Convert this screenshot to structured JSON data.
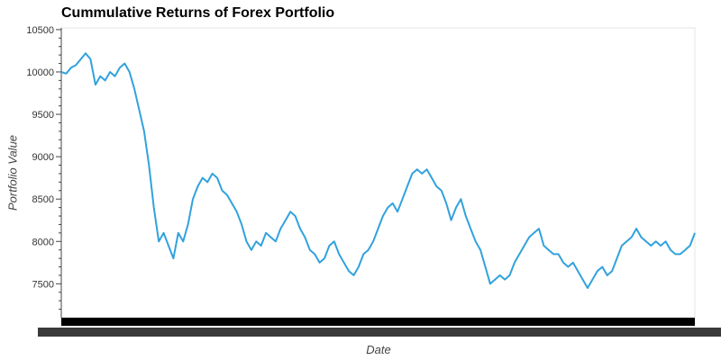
{
  "chart_data": {
    "type": "line",
    "title": "Cummulative Returns of Forex Portfolio",
    "xlabel": "Date",
    "ylabel": "Portfolio Value",
    "ylim": [
      7100,
      10520
    ],
    "y_ticks": [
      7500,
      8000,
      8500,
      9000,
      9500,
      10000,
      10500
    ],
    "y_tick_labels": [
      "7500",
      "8000",
      "8500",
      "9000",
      "9500",
      "10000",
      "10500"
    ],
    "grid": false,
    "legend": "none",
    "series_color": "#31a2dd",
    "series": [
      {
        "values": [
          10000,
          9980,
          10050,
          10080,
          10150,
          10220,
          10150,
          9850,
          9950,
          9900,
          10000,
          9950,
          10050,
          10100,
          10000,
          9800,
          9550,
          9300,
          8900,
          8400,
          8000,
          8100,
          7950,
          7800,
          8100,
          8000,
          8200,
          8500,
          8650,
          8750,
          8700,
          8800,
          8750,
          8600,
          8550,
          8450,
          8350,
          8200,
          8000,
          7900,
          8000,
          7950,
          8100,
          8050,
          8000,
          8150,
          8250,
          8350,
          8300,
          8150,
          8050,
          7900,
          7850,
          7750,
          7800,
          7950,
          8000,
          7850,
          7750,
          7650,
          7600,
          7700,
          7850,
          7900,
          8000,
          8150,
          8300,
          8400,
          8450,
          8350,
          8500,
          8650,
          8800,
          8850,
          8800,
          8850,
          8750,
          8650,
          8600,
          8450,
          8250,
          8400,
          8500,
          8300,
          8150,
          8000,
          7900,
          7700,
          7500,
          7550,
          7600,
          7550,
          7600,
          7750,
          7850,
          7950,
          8050,
          8100,
          8150,
          7950,
          7900,
          7850,
          7850,
          7750,
          7700,
          7750,
          7650,
          7550,
          7450,
          7550,
          7650,
          7700,
          7600,
          7650,
          7800,
          7950,
          8000,
          8050,
          8150,
          8050,
          8000,
          7950,
          8000,
          7950,
          8000,
          7900,
          7850,
          7850,
          7900,
          7950,
          8100
        ]
      }
    ]
  },
  "xticks_note": ""
}
